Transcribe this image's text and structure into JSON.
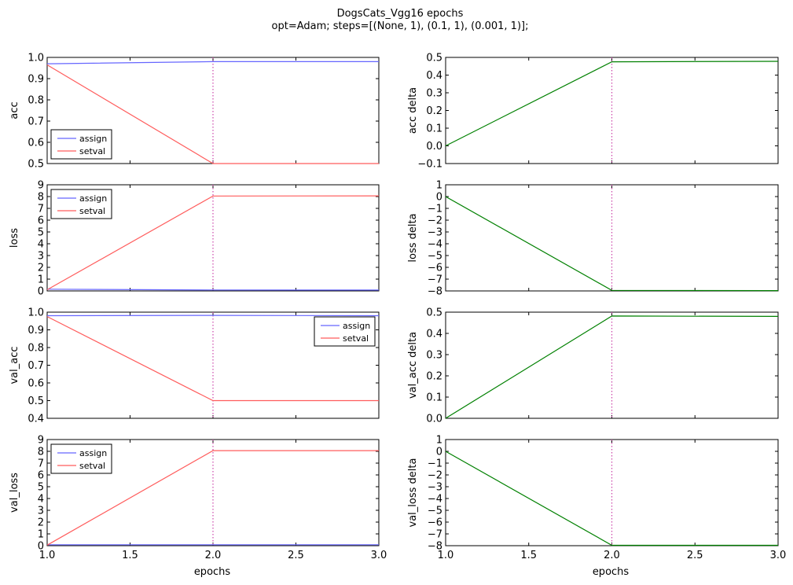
{
  "figure": {
    "title_line1": "DogsCats_Vgg16 epochs",
    "title_line2": "opt=Adam; steps=[(None, 1), (0.1, 1), (0.001, 1)];",
    "xlabel": "epochs"
  },
  "colors": {
    "assign": "#6666ff",
    "setval": "#ff5c5c",
    "delta": "#008000",
    "vline": "#cc44aa"
  },
  "chart_data": [
    {
      "id": "acc",
      "type": "line",
      "ylabel": "acc",
      "xlim": [
        1.0,
        3.0
      ],
      "ylim": [
        0.5,
        1.0
      ],
      "xticks": [
        "1.0",
        "1.5",
        "2.0",
        "2.5",
        "3.0"
      ],
      "yticks": [
        "0.5",
        "0.6",
        "0.7",
        "0.8",
        "0.9",
        "1.0"
      ],
      "vline_x": 2.0,
      "legend": {
        "position": "lower-left",
        "entries": [
          "assign",
          "setval"
        ]
      },
      "x": [
        1,
        2,
        3
      ],
      "series": [
        {
          "name": "assign",
          "color": "assign",
          "values": [
            0.97,
            0.98,
            0.98
          ]
        },
        {
          "name": "setval",
          "color": "setval",
          "values": [
            0.965,
            0.5,
            0.5
          ]
        }
      ]
    },
    {
      "id": "acc_delta",
      "type": "line",
      "ylabel": "acc delta",
      "xlim": [
        1.0,
        3.0
      ],
      "ylim": [
        -0.1,
        0.5
      ],
      "xticks": [
        "1.0",
        "1.5",
        "2.0",
        "2.5",
        "3.0"
      ],
      "yticks": [
        "−0.1",
        "0.0",
        "0.1",
        "0.2",
        "0.3",
        "0.4",
        "0.5"
      ],
      "vline_x": 2.0,
      "x": [
        1,
        2,
        3
      ],
      "series": [
        {
          "color": "delta",
          "values": [
            0.0,
            0.475,
            0.478
          ]
        }
      ]
    },
    {
      "id": "loss",
      "type": "line",
      "ylabel": "loss",
      "xlim": [
        1.0,
        3.0
      ],
      "ylim": [
        0,
        9
      ],
      "xticks": [
        "1.0",
        "1.5",
        "2.0",
        "2.5",
        "3.0"
      ],
      "yticks": [
        "0",
        "1",
        "2",
        "3",
        "4",
        "5",
        "6",
        "7",
        "8",
        "9"
      ],
      "vline_x": 2.0,
      "legend": {
        "position": "upper-left",
        "entries": [
          "assign",
          "setval"
        ]
      },
      "x": [
        1,
        2,
        3
      ],
      "series": [
        {
          "name": "assign",
          "color": "assign",
          "values": [
            0.15,
            0.08,
            0.07
          ]
        },
        {
          "name": "setval",
          "color": "setval",
          "values": [
            0.1,
            8.05,
            8.06
          ]
        }
      ]
    },
    {
      "id": "loss_delta",
      "type": "line",
      "ylabel": "loss delta",
      "xlim": [
        1.0,
        3.0
      ],
      "ylim": [
        -8,
        1
      ],
      "xticks": [
        "1.0",
        "1.5",
        "2.0",
        "2.5",
        "3.0"
      ],
      "yticks": [
        "−8",
        "−7",
        "−6",
        "−5",
        "−4",
        "−3",
        "−2",
        "−1",
        "0",
        "1"
      ],
      "vline_x": 2.0,
      "x": [
        1,
        2,
        3
      ],
      "series": [
        {
          "color": "delta",
          "values": [
            0.0,
            -7.95,
            -7.97
          ]
        }
      ]
    },
    {
      "id": "val_acc",
      "type": "line",
      "ylabel": "val_acc",
      "xlim": [
        1.0,
        3.0
      ],
      "ylim": [
        0.4,
        1.0
      ],
      "xticks": [
        "1.0",
        "1.5",
        "2.0",
        "2.5",
        "3.0"
      ],
      "yticks": [
        "0.4",
        "0.5",
        "0.6",
        "0.7",
        "0.8",
        "0.9",
        "1.0"
      ],
      "vline_x": 2.0,
      "legend": {
        "position": "upper-right",
        "entries": [
          "assign",
          "setval"
        ]
      },
      "x": [
        1,
        2,
        3
      ],
      "series": [
        {
          "name": "assign",
          "color": "assign",
          "values": [
            0.98,
            0.982,
            0.98
          ]
        },
        {
          "name": "setval",
          "color": "setval",
          "values": [
            0.975,
            0.5,
            0.5
          ]
        }
      ]
    },
    {
      "id": "val_acc_delta",
      "type": "line",
      "ylabel": "val_acc delta",
      "xlim": [
        1.0,
        3.0
      ],
      "ylim": [
        0.0,
        0.5
      ],
      "xticks": [
        "1.0",
        "1.5",
        "2.0",
        "2.5",
        "3.0"
      ],
      "yticks": [
        "0.0",
        "0.1",
        "0.2",
        "0.3",
        "0.4",
        "0.5"
      ],
      "vline_x": 2.0,
      "x": [
        1,
        2,
        3
      ],
      "series": [
        {
          "color": "delta",
          "values": [
            0.0,
            0.482,
            0.48
          ]
        }
      ]
    },
    {
      "id": "val_loss",
      "type": "line",
      "ylabel": "val_loss",
      "xlim": [
        1.0,
        3.0
      ],
      "ylim": [
        0,
        9
      ],
      "xticks": [
        "1.0",
        "1.5",
        "2.0",
        "2.5",
        "3.0"
      ],
      "yticks": [
        "0",
        "1",
        "2",
        "3",
        "4",
        "5",
        "6",
        "7",
        "8",
        "9"
      ],
      "vline_x": 2.0,
      "legend": {
        "position": "upper-left",
        "entries": [
          "assign",
          "setval"
        ]
      },
      "x": [
        1,
        2,
        3
      ],
      "series": [
        {
          "name": "assign",
          "color": "assign",
          "values": [
            0.08,
            0.08,
            0.08
          ]
        },
        {
          "name": "setval",
          "color": "setval",
          "values": [
            0.05,
            8.06,
            8.06
          ]
        }
      ]
    },
    {
      "id": "val_loss_delta",
      "type": "line",
      "ylabel": "val_loss delta",
      "xlim": [
        1.0,
        3.0
      ],
      "ylim": [
        -8,
        1
      ],
      "xticks": [
        "1.0",
        "1.5",
        "2.0",
        "2.5",
        "3.0"
      ],
      "yticks": [
        "−8",
        "−7",
        "−6",
        "−5",
        "−4",
        "−3",
        "−2",
        "−1",
        "0",
        "1"
      ],
      "vline_x": 2.0,
      "x": [
        1,
        2,
        3
      ],
      "series": [
        {
          "color": "delta",
          "values": [
            0.0,
            -7.97,
            -7.97
          ]
        }
      ]
    }
  ]
}
